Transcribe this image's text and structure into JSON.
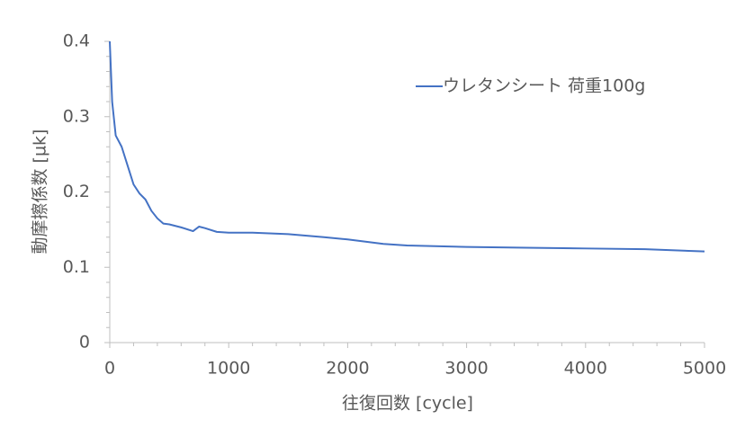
{
  "chart_data": {
    "type": "line",
    "x_label": "往復回数 [cycle]",
    "y_label": "動摩擦係数 [µk]",
    "x": [
      0,
      10,
      20,
      50,
      100,
      150,
      200,
      250,
      300,
      350,
      400,
      450,
      500,
      600,
      700,
      750,
      800,
      900,
      1000,
      1200,
      1500,
      1800,
      2000,
      2300,
      2500,
      3000,
      3500,
      4000,
      4500,
      5000
    ],
    "series": [
      {
        "name": "ウレタンシート 荷重100g",
        "color": "#4472c4",
        "values": [
          0.4,
          0.36,
          0.32,
          0.275,
          0.26,
          0.235,
          0.21,
          0.198,
          0.19,
          0.175,
          0.165,
          0.158,
          0.157,
          0.153,
          0.148,
          0.154,
          0.152,
          0.147,
          0.146,
          0.146,
          0.144,
          0.14,
          0.137,
          0.131,
          0.129,
          0.127,
          0.126,
          0.125,
          0.124,
          0.121
        ]
      }
    ],
    "xlim": [
      0,
      5000
    ],
    "xticks": [
      0,
      1000,
      2000,
      3000,
      4000,
      5000
    ],
    "x_minor_ticks": [
      200,
      400,
      600,
      800,
      1200,
      1400,
      1600,
      1800,
      2200,
      2400,
      2600,
      2800,
      3200,
      3400,
      3600,
      3800,
      4200,
      4400,
      4600,
      4800
    ],
    "ylim": [
      0,
      0.4
    ],
    "yticks": [
      0,
      0.1,
      0.2,
      0.3,
      0.4
    ],
    "y_minor_ticks": [
      0.02,
      0.04,
      0.06,
      0.08,
      0.12,
      0.14,
      0.16,
      0.18,
      0.22,
      0.24,
      0.26,
      0.28,
      0.32,
      0.34,
      0.36,
      0.38
    ],
    "grid": false,
    "legend": "upper right"
  }
}
